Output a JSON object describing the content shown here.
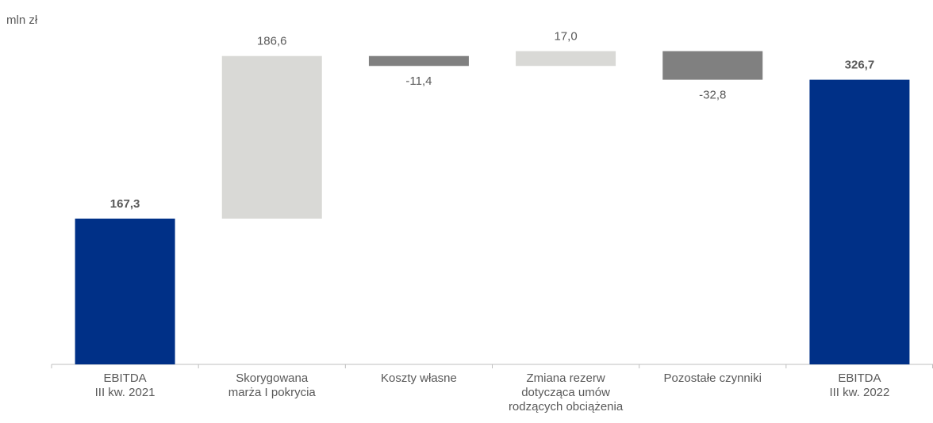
{
  "chart_data": {
    "type": "waterfall",
    "ylabel": "mln zł",
    "categories": [
      [
        "EBITDA",
        "III kw. 2021"
      ],
      [
        "Skorygowana",
        "marża I pokrycia"
      ],
      [
        "Koszty własne"
      ],
      [
        "Zmiana rezerw",
        "dotycząca umów",
        "rodzących obciążenia"
      ],
      [
        "Pozostałe czynniki"
      ],
      [
        "EBITDA",
        "III kw. 2022"
      ]
    ],
    "values": [
      167.3,
      186.6,
      -11.4,
      17.0,
      -32.8,
      326.7
    ],
    "value_labels": [
      "167,3",
      "186,6",
      "-11,4",
      "17,0",
      "-32,8",
      "326,7"
    ],
    "is_total": [
      true,
      false,
      false,
      false,
      false,
      true
    ],
    "colors": [
      "#003087",
      "#d9d9d6",
      "#808080",
      "#d9d9d6",
      "#808080",
      "#003087"
    ],
    "ylim": [
      0,
      400
    ]
  }
}
